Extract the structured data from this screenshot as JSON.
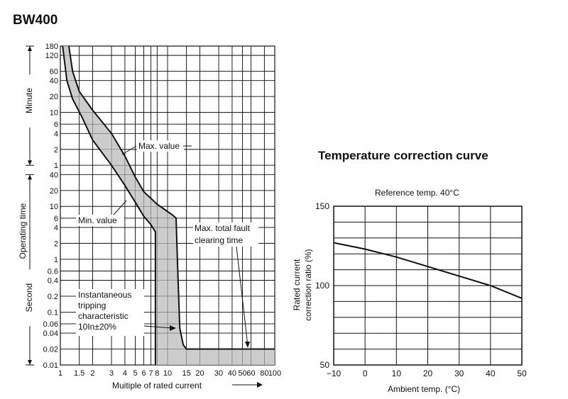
{
  "title": "BW400",
  "chart_data": [
    {
      "type": "area",
      "xlabel": "Muitiple of rated current",
      "xscale": "log",
      "xlim": [
        1,
        100
      ],
      "x_ticks": [
        1,
        1.5,
        2,
        3,
        4,
        5,
        6,
        7,
        8,
        10,
        15,
        20,
        30,
        40,
        50,
        60,
        80,
        100
      ],
      "x_tick_labels": [
        "1",
        "1.5",
        "2",
        "3",
        "4",
        "5",
        "6",
        "7",
        "8",
        "10",
        "15",
        "20",
        "30",
        "40",
        "50",
        "60",
        "80",
        "100"
      ],
      "yscale": "log",
      "ylabel": "Operating time",
      "y_ticks_second": [
        0.01,
        0.02,
        0.04,
        0.06,
        0.1,
        0.2,
        0.4,
        0.6,
        1,
        2,
        4,
        6,
        10,
        20,
        40
      ],
      "y_tick_labels_second": [
        "0.01",
        "0.02",
        "0.04",
        "0.06",
        "0.1",
        "0.2",
        "0.4",
        "0.6",
        "1",
        "2",
        "4",
        "6",
        "10",
        "20",
        "40"
      ],
      "y_ticks_minute": [
        1,
        2,
        4,
        6,
        10,
        20,
        40,
        60,
        120,
        180
      ],
      "y_tick_labels_minute": [
        "1",
        "2",
        "4",
        "6",
        "10",
        "20",
        "40",
        "60",
        "120",
        "180"
      ],
      "y_groups": [
        "Minute",
        "Second"
      ],
      "grid": true,
      "series": [
        {
          "name": "Max. value",
          "x": [
            1.2,
            1.3,
            1.5,
            2,
            3,
            4,
            5,
            6,
            8,
            10,
            11,
            12,
            12.5,
            13,
            14,
            15,
            20,
            50,
            100
          ],
          "y": [
            10800,
            3600,
            1500,
            660,
            240,
            90,
            36,
            19,
            11,
            8,
            7,
            6,
            0.5,
            0.05,
            0.024,
            0.02,
            0.02,
            0.02,
            0.02
          ]
        },
        {
          "name": "Min. value",
          "x": [
            1.05,
            1.15,
            1.3,
            1.6,
            2,
            3,
            4,
            5,
            6,
            7,
            7.7,
            7.7,
            7.7,
            7.7,
            7.7
          ],
          "y": [
            10800,
            2400,
            1080,
            480,
            180,
            60,
            25,
            12,
            6.5,
            4.5,
            3.3,
            0.8,
            0.1,
            0.02,
            0.01
          ]
        }
      ],
      "annotations": [
        {
          "text": "Max. value"
        },
        {
          "text": "Min. value"
        },
        {
          "text": "Max. total fault clearing time",
          "lines": [
            "Max. total fault",
            "clearing time"
          ]
        },
        {
          "text": "Instantaneous tripping characteristic 10In±20%",
          "lines": [
            "Instantaneous",
            "tripping",
            "characteristic",
            "10In±20%"
          ]
        }
      ]
    },
    {
      "type": "line",
      "title": "Temperature correction curve",
      "subtitle": "Reference temp. 40°C",
      "xlabel": "Ambient temp. (°C)",
      "ylabel": "Rated current correction ratio (%)",
      "ylabel_lines": [
        "Rated current",
        "correction ratio (%)"
      ],
      "xlim": [
        -10,
        50
      ],
      "ylim": [
        50,
        150
      ],
      "x_ticks": [
        -10,
        0,
        10,
        20,
        30,
        40,
        50
      ],
      "x_tick_labels": [
        "−10",
        "0",
        "10",
        "20",
        "30",
        "40",
        "50"
      ],
      "y_ticks": [
        50,
        100,
        150
      ],
      "y_tick_labels": [
        "50",
        "100",
        "150"
      ],
      "grid": true,
      "series": [
        {
          "x": [
            -10,
            0,
            10,
            20,
            30,
            40,
            50
          ],
          "y": [
            127,
            123,
            118,
            112,
            106,
            100,
            92
          ]
        }
      ]
    }
  ]
}
